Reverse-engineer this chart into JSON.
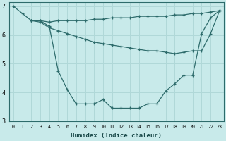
{
  "xlabel": "Humidex (Indice chaleur)",
  "bg_color": "#c8eaea",
  "line_color": "#2d6b6b",
  "grid_color": "#b0d8d8",
  "xlim": [
    -0.5,
    23.5
  ],
  "ylim": [
    3,
    7.15
  ],
  "yticks": [
    3,
    4,
    5,
    6,
    7
  ],
  "xticks": [
    0,
    1,
    2,
    3,
    4,
    5,
    6,
    7,
    8,
    9,
    10,
    11,
    12,
    13,
    14,
    15,
    16,
    17,
    18,
    19,
    20,
    21,
    22,
    23
  ],
  "line1_x": [
    0,
    1,
    2,
    3,
    4,
    5,
    6,
    7,
    8,
    9,
    10,
    11,
    12,
    13,
    14,
    15,
    16,
    17,
    18,
    19,
    20,
    21,
    22,
    23
  ],
  "line1_y": [
    7.0,
    6.75,
    6.5,
    6.5,
    6.3,
    4.75,
    4.1,
    3.6,
    3.6,
    3.6,
    3.75,
    3.45,
    3.45,
    3.45,
    3.45,
    3.6,
    3.6,
    4.05,
    4.3,
    4.6,
    4.6,
    6.05,
    6.6,
    6.85
  ],
  "line2_x": [
    2,
    3,
    4,
    5,
    6,
    7,
    8,
    9,
    10,
    11,
    12,
    13,
    14,
    15,
    16,
    17,
    18,
    19,
    20,
    21,
    22,
    23
  ],
  "line2_y": [
    6.5,
    6.5,
    6.45,
    6.5,
    6.5,
    6.5,
    6.5,
    6.55,
    6.55,
    6.6,
    6.6,
    6.6,
    6.65,
    6.65,
    6.65,
    6.65,
    6.7,
    6.7,
    6.75,
    6.75,
    6.8,
    6.85
  ],
  "line3_x": [
    2,
    3,
    4,
    5,
    6,
    7,
    8,
    9,
    10,
    11,
    12,
    13,
    14,
    15,
    16,
    17,
    18,
    19,
    20,
    21,
    22,
    23
  ],
  "line3_y": [
    6.5,
    6.45,
    6.25,
    6.15,
    6.05,
    5.95,
    5.85,
    5.75,
    5.7,
    5.65,
    5.6,
    5.55,
    5.5,
    5.45,
    5.45,
    5.4,
    5.35,
    5.4,
    5.45,
    5.45,
    6.05,
    6.85
  ]
}
